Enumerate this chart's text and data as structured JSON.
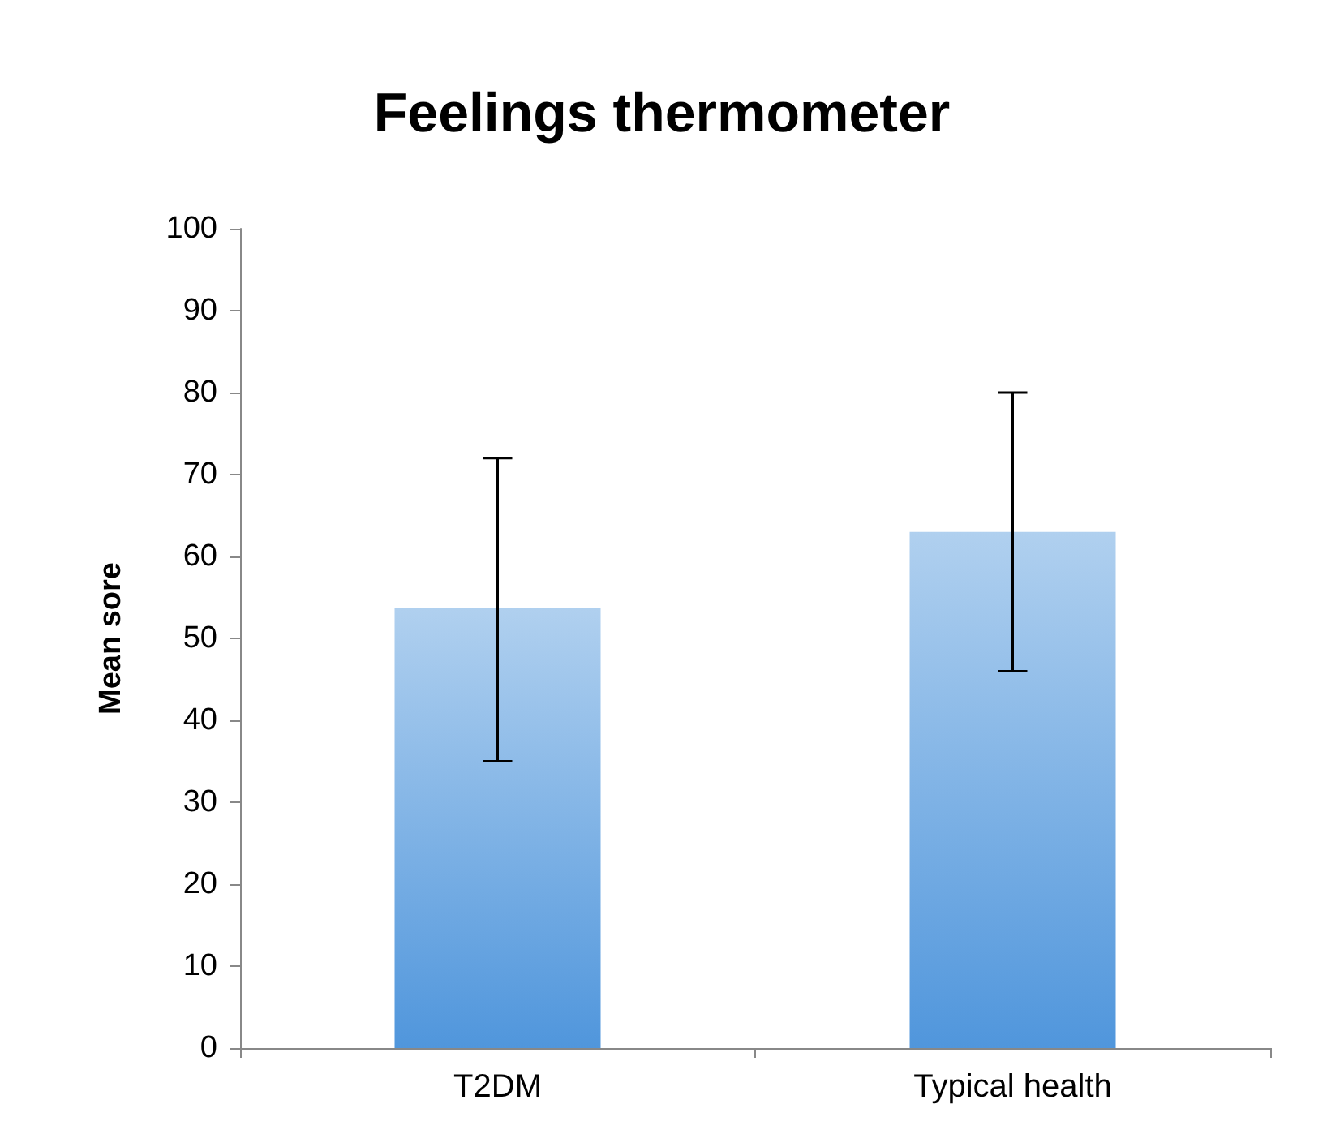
{
  "chart_data": {
    "type": "bar",
    "title": "Feelings thermometer",
    "ylabel": "Mean sore",
    "categories": [
      "T2DM",
      "Typical health"
    ],
    "values": [
      53.7,
      63
    ],
    "errors": [
      [
        35,
        72
      ],
      [
        46,
        80
      ]
    ],
    "color": "#5096dc",
    "ylim": [
      0,
      100
    ],
    "yticks": [
      0,
      10,
      20,
      30,
      40,
      50,
      60,
      70,
      80,
      90,
      100
    ],
    "grid": false
  }
}
